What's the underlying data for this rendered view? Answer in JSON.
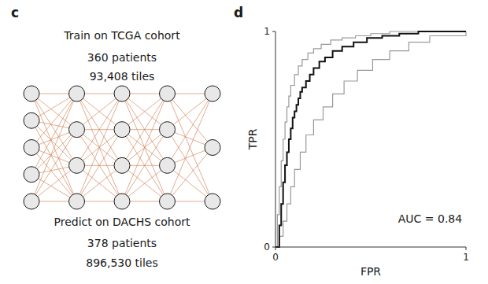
{
  "chart_data": [
    {
      "type": "network",
      "title": "c",
      "annotations": [
        "Train on TCGA cohort",
        "360 patients",
        "93,408 tiles",
        "Predict on DACHS cohort",
        "378 patients",
        "896,530 tiles"
      ],
      "layers": [
        5,
        4,
        4,
        4,
        3
      ],
      "color": "#D4845A"
    },
    {
      "type": "step",
      "title": "d",
      "xlabel": "FPR",
      "ylabel": "TPR",
      "xlim": [
        0,
        1
      ],
      "ylim": [
        0,
        1
      ],
      "xticks": [
        0,
        1
      ],
      "yticks": [
        0,
        1
      ],
      "annotations": [
        "AUC = 0.84"
      ],
      "series": [
        {
          "color": "#999999",
          "x": [
            0,
            0.01,
            0.02,
            0.03,
            0.04,
            0.05,
            0.06,
            0.07,
            0.08,
            0.1,
            0.12,
            0.14,
            0.17,
            0.2,
            0.24,
            0.29,
            0.35,
            0.42,
            0.5,
            0.6,
            0.71,
            1.0
          ],
          "values": [
            0,
            0.15,
            0.28,
            0.4,
            0.5,
            0.58,
            0.65,
            0.7,
            0.75,
            0.8,
            0.84,
            0.87,
            0.9,
            0.92,
            0.94,
            0.96,
            0.97,
            0.98,
            0.99,
            1.0,
            1.0,
            1.0
          ]
        },
        {
          "color": "#999999",
          "x": [
            0,
            0.02,
            0.04,
            0.06,
            0.08,
            0.1,
            0.13,
            0.16,
            0.2,
            0.25,
            0.3,
            0.36,
            0.43,
            0.51,
            0.6,
            0.7,
            0.81,
            1.0
          ],
          "values": [
            0,
            0.05,
            0.12,
            0.2,
            0.28,
            0.36,
            0.44,
            0.52,
            0.59,
            0.65,
            0.71,
            0.77,
            0.82,
            0.87,
            0.91,
            0.95,
            0.98,
            1.0
          ]
        },
        {
          "color": "#111111",
          "x": [
            0,
            0.02,
            0.03,
            0.04,
            0.05,
            0.06,
            0.07,
            0.08,
            0.09,
            0.1,
            0.11,
            0.12,
            0.13,
            0.14,
            0.16,
            0.18,
            0.2,
            0.23,
            0.26,
            0.3,
            0.35,
            0.41,
            0.48,
            0.56,
            0.65,
            0.75,
            1.0
          ],
          "values": [
            0,
            0.1,
            0.2,
            0.3,
            0.38,
            0.44,
            0.5,
            0.55,
            0.6,
            0.63,
            0.66,
            0.69,
            0.72,
            0.74,
            0.77,
            0.8,
            0.83,
            0.86,
            0.88,
            0.91,
            0.93,
            0.95,
            0.97,
            0.98,
            0.99,
            1.0,
            1.0
          ]
        }
      ]
    }
  ]
}
